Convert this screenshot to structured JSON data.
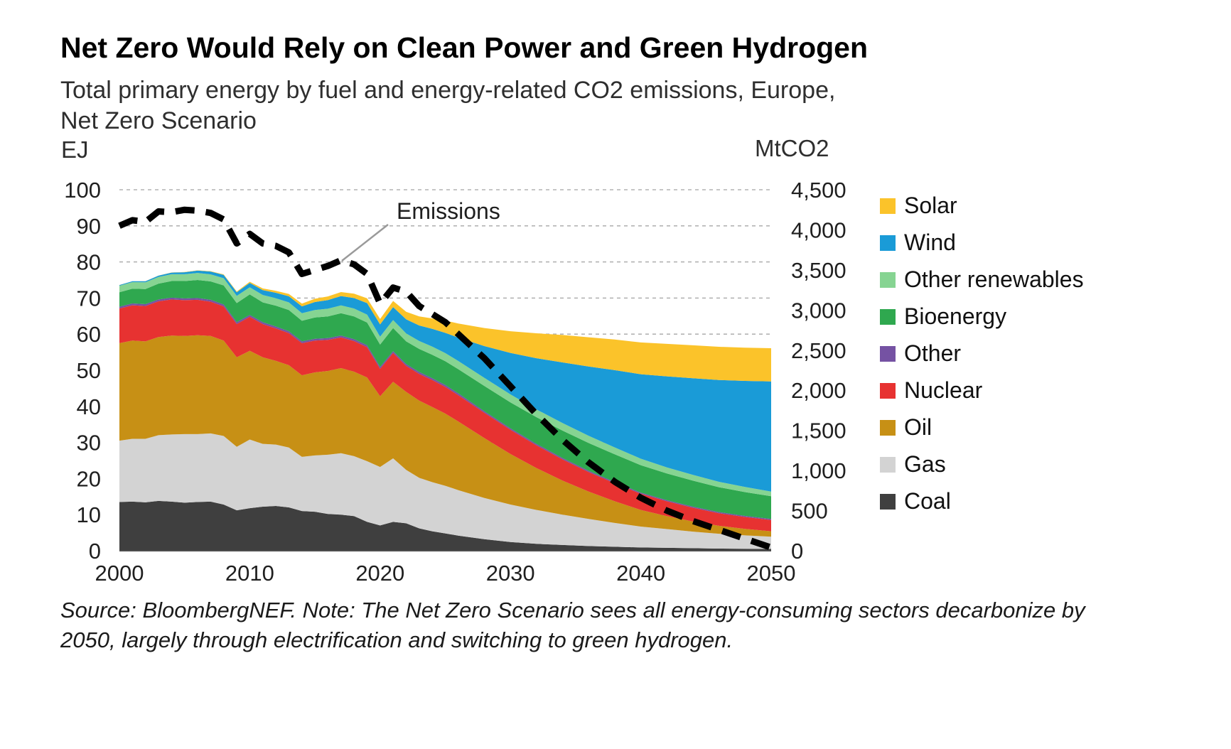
{
  "header": {
    "title": "Net Zero Would Rely on Clean Power and Green Hydrogen",
    "subtitle": "Total primary energy by fuel and energy-related CO2 emissions, Europe,\nNet Zero Scenario"
  },
  "footer": {
    "source_note": "Source: BloombergNEF. Note: The Net Zero Scenario sees all energy-consuming sectors decarbonize by 2050, largely through electrification and switching to green hydrogen."
  },
  "chart_data": {
    "type": "combo-stacked-area-line",
    "title": "Net Zero Would Rely on Clean Power and Green Hydrogen",
    "subtitle": "Total primary energy by fuel and energy-related CO2 emissions, Europe, Net Zero Scenario",
    "grid": "horizontal-dashed",
    "legend_position": "right",
    "left_axis": {
      "unit": "EJ",
      "min": 0,
      "max": 100,
      "ticks": [
        0,
        10,
        20,
        30,
        40,
        50,
        60,
        70,
        80,
        90,
        100
      ]
    },
    "right_axis": {
      "unit": "MtCO2",
      "min": 0,
      "max": 4500,
      "ticks": [
        "0",
        "500",
        "1,000",
        "1,500",
        "2,000",
        "2,500",
        "3,000",
        "3,500",
        "4,000",
        "4,500"
      ]
    },
    "x_axis": {
      "min": 2000,
      "max": 2050,
      "ticks": [
        "2000",
        "2010",
        "2020",
        "2030",
        "2040",
        "2050"
      ]
    },
    "years": [
      2000,
      2001,
      2002,
      2003,
      2004,
      2005,
      2006,
      2007,
      2008,
      2009,
      2010,
      2011,
      2012,
      2013,
      2014,
      2015,
      2016,
      2017,
      2018,
      2019,
      2020,
      2021,
      2022,
      2023,
      2024,
      2025,
      2026,
      2028,
      2030,
      2032,
      2034,
      2036,
      2038,
      2040,
      2042,
      2044,
      2046,
      2048,
      2050
    ],
    "stack_series": [
      {
        "name": "Coal",
        "color": "#3f3f3f",
        "values": [
          13.5,
          13.6,
          13.4,
          13.8,
          13.6,
          13.3,
          13.5,
          13.6,
          12.8,
          11.2,
          11.8,
          12.2,
          12.4,
          12.0,
          11.0,
          10.8,
          10.2,
          10.0,
          9.6,
          8.0,
          7.0,
          8.0,
          7.6,
          6.2,
          5.4,
          4.8,
          4.2,
          3.2,
          2.4,
          1.9,
          1.6,
          1.3,
          1.1,
          0.9,
          0.8,
          0.7,
          0.6,
          0.55,
          0.5
        ]
      },
      {
        "name": "Gas",
        "color": "#d3d3d3",
        "values": [
          17.0,
          17.4,
          17.6,
          18.2,
          18.6,
          19.0,
          18.8,
          18.9,
          19.0,
          17.6,
          19.0,
          17.4,
          17.0,
          16.6,
          15.0,
          15.6,
          16.4,
          17.0,
          16.6,
          16.8,
          16.2,
          17.6,
          14.8,
          14.0,
          13.6,
          13.2,
          12.6,
          11.4,
          10.4,
          9.4,
          8.4,
          7.5,
          6.6,
          5.8,
          5.2,
          4.6,
          4.1,
          3.7,
          3.4
        ]
      },
      {
        "name": "Oil",
        "color": "#c79015",
        "values": [
          27.0,
          27.2,
          27.0,
          27.2,
          27.4,
          27.2,
          27.4,
          27.0,
          26.4,
          24.8,
          24.6,
          24.0,
          23.2,
          22.8,
          22.6,
          23.0,
          23.2,
          23.6,
          23.4,
          23.2,
          19.6,
          21.2,
          21.6,
          21.4,
          20.8,
          20.0,
          19.0,
          16.6,
          14.0,
          11.6,
          9.4,
          7.6,
          6.0,
          4.6,
          3.6,
          2.8,
          2.2,
          1.8,
          1.5
        ]
      },
      {
        "name": "Nuclear",
        "color": "#e73231",
        "values": [
          9.6,
          9.8,
          9.8,
          9.9,
          10.0,
          9.9,
          9.8,
          9.5,
          9.5,
          9.2,
          9.4,
          9.2,
          9.0,
          8.9,
          8.9,
          8.8,
          8.6,
          8.5,
          8.5,
          8.4,
          7.6,
          8.0,
          7.2,
          7.4,
          7.5,
          7.4,
          7.3,
          7.0,
          6.7,
          6.3,
          5.9,
          5.4,
          5.0,
          4.5,
          4.1,
          3.8,
          3.5,
          3.3,
          3.1
        ]
      },
      {
        "name": "Other",
        "color": "#7552a3",
        "values": [
          0.5,
          0.5,
          0.5,
          0.5,
          0.5,
          0.5,
          0.5,
          0.5,
          0.5,
          0.5,
          0.5,
          0.5,
          0.5,
          0.5,
          0.5,
          0.5,
          0.5,
          0.5,
          0.5,
          0.5,
          0.5,
          0.5,
          0.5,
          0.5,
          0.5,
          0.5,
          0.5,
          0.45,
          0.4,
          0.38,
          0.36,
          0.34,
          0.32,
          0.3,
          0.3,
          0.3,
          0.3,
          0.3,
          0.3
        ]
      },
      {
        "name": "Bioenergy",
        "color": "#2fa84f",
        "values": [
          4.0,
          4.1,
          4.2,
          4.4,
          4.6,
          4.8,
          5.0,
          5.1,
          5.3,
          5.3,
          5.7,
          5.5,
          5.8,
          5.9,
          5.7,
          5.9,
          6.0,
          6.2,
          6.3,
          6.3,
          6.2,
          6.4,
          6.3,
          6.4,
          6.5,
          6.6,
          6.7,
          7.0,
          7.2,
          7.4,
          7.6,
          7.7,
          7.7,
          7.6,
          7.4,
          7.2,
          6.9,
          6.6,
          6.3
        ]
      },
      {
        "name": "Other renewables",
        "color": "#86d492",
        "values": [
          1.8,
          1.8,
          1.85,
          1.85,
          1.9,
          1.9,
          1.95,
          1.95,
          2.0,
          2.0,
          2.0,
          2.05,
          2.05,
          2.1,
          2.1,
          2.1,
          2.15,
          2.15,
          2.2,
          2.2,
          2.2,
          2.2,
          2.2,
          2.2,
          2.25,
          2.25,
          2.25,
          2.25,
          2.2,
          2.15,
          2.1,
          2.0,
          1.9,
          1.8,
          1.7,
          1.6,
          1.5,
          1.4,
          1.3
        ]
      },
      {
        "name": "Wind",
        "color": "#1a9bd7",
        "values": [
          0.2,
          0.25,
          0.3,
          0.35,
          0.45,
          0.55,
          0.65,
          0.8,
          0.9,
          1.0,
          1.2,
          1.35,
          1.5,
          1.7,
          1.9,
          2.2,
          2.4,
          2.6,
          2.9,
          3.2,
          3.4,
          3.6,
          3.9,
          4.3,
          4.9,
          5.6,
          6.5,
          8.8,
          11.5,
          14.2,
          16.8,
          19.2,
          21.4,
          23.4,
          25.2,
          26.8,
          28.2,
          29.4,
          30.5
        ]
      },
      {
        "name": "Solar",
        "color": "#fbc32a",
        "values": [
          0.02,
          0.02,
          0.03,
          0.03,
          0.04,
          0.05,
          0.07,
          0.1,
          0.15,
          0.2,
          0.3,
          0.45,
          0.55,
          0.65,
          0.75,
          0.9,
          1.0,
          1.1,
          1.2,
          1.35,
          1.5,
          1.7,
          2.1,
          2.5,
          2.9,
          3.4,
          3.9,
          5.0,
          6.0,
          6.9,
          7.6,
          8.1,
          8.5,
          8.8,
          9.0,
          9.1,
          9.2,
          9.2,
          9.2
        ]
      }
    ],
    "line_series": {
      "name": "Emissions",
      "axis": "right",
      "color": "#000000",
      "style": "dashed",
      "values": [
        4050,
        4120,
        4100,
        4230,
        4220,
        4250,
        4240,
        4210,
        4130,
        3830,
        3950,
        3830,
        3800,
        3720,
        3450,
        3500,
        3550,
        3620,
        3570,
        3450,
        3080,
        3280,
        3230,
        3050,
        2950,
        2850,
        2700,
        2400,
        2050,
        1700,
        1380,
        1100,
        860,
        660,
        500,
        370,
        260,
        150,
        40
      ]
    },
    "legend": [
      {
        "label": "Solar",
        "color": "#fbc32a"
      },
      {
        "label": "Wind",
        "color": "#1a9bd7"
      },
      {
        "label": "Other renewables",
        "color": "#86d492"
      },
      {
        "label": "Bioenergy",
        "color": "#2fa84f"
      },
      {
        "label": "Other",
        "color": "#7552a3"
      },
      {
        "label": "Nuclear",
        "color": "#e73231"
      },
      {
        "label": "Oil",
        "color": "#c79015"
      },
      {
        "label": "Gas",
        "color": "#d3d3d3"
      },
      {
        "label": "Coal",
        "color": "#3f3f3f"
      }
    ],
    "annotation": {
      "text": "Emissions"
    }
  }
}
